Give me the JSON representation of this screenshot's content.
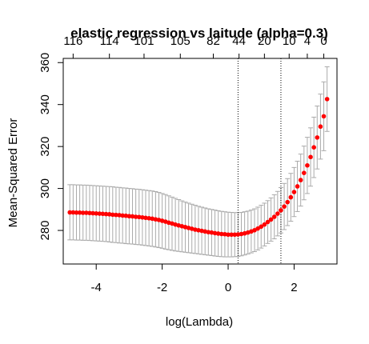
{
  "chart_data": {
    "type": "scatter",
    "title": "elastic regression vs laitude (alpha=0.3)",
    "xlabel": "log(Lambda)",
    "ylabel": "Mean-Squared Error",
    "xlim": [
      -5.0,
      3.3
    ],
    "ylim": [
      264,
      362
    ],
    "x_ticks": [
      -4,
      -2,
      0,
      2
    ],
    "x_tick_labels": [
      "-4",
      "-2",
      "0",
      "2"
    ],
    "y_ticks": [
      280,
      300,
      320,
      340,
      360
    ],
    "y_tick_labels": [
      "280",
      "300",
      "320",
      "340",
      "360"
    ],
    "top_axis_positions": [
      -4.7,
      -3.6,
      -2.55,
      -1.45,
      -0.45,
      0.33,
      1.1,
      1.85,
      2.4,
      2.9
    ],
    "top_axis_labels": [
      "116",
      "114",
      "101",
      "105",
      "82",
      "44",
      "20",
      "10",
      "4",
      "0"
    ],
    "vlines": [
      0.3,
      1.6
    ],
    "point_color": "#ff0000",
    "errorbar_color": "#aaaaaa",
    "x": [
      -4.8,
      -4.7,
      -4.6,
      -4.5,
      -4.4,
      -4.3,
      -4.2,
      -4.1,
      -4.0,
      -3.9,
      -3.8,
      -3.7,
      -3.6,
      -3.5,
      -3.4,
      -3.3,
      -3.2,
      -3.1,
      -3.0,
      -2.9,
      -2.8,
      -2.7,
      -2.6,
      -2.5,
      -2.4,
      -2.3,
      -2.2,
      -2.1,
      -2.0,
      -1.9,
      -1.8,
      -1.7,
      -1.6,
      -1.5,
      -1.4,
      -1.3,
      -1.2,
      -1.1,
      -1.0,
      -0.9,
      -0.8,
      -0.7,
      -0.6,
      -0.5,
      -0.4,
      -0.3,
      -0.2,
      -0.1,
      0.0,
      0.1,
      0.2,
      0.3,
      0.4,
      0.5,
      0.6,
      0.7,
      0.8,
      0.9,
      1.0,
      1.1,
      1.2,
      1.3,
      1.4,
      1.5,
      1.6,
      1.7,
      1.8,
      1.9,
      2.0,
      2.1,
      2.2,
      2.3,
      2.4,
      2.5,
      2.6,
      2.7,
      2.8,
      2.9,
      3.0
    ],
    "mse": [
      288.6,
      288.6,
      288.5,
      288.5,
      288.4,
      288.4,
      288.3,
      288.2,
      288.1,
      288.0,
      287.9,
      287.8,
      287.7,
      287.5,
      287.4,
      287.3,
      287.1,
      287.0,
      286.8,
      286.7,
      286.5,
      286.4,
      286.2,
      286.0,
      285.8,
      285.6,
      285.3,
      285.0,
      284.6,
      284.2,
      283.7,
      283.3,
      282.8,
      282.4,
      282.0,
      281.6,
      281.2,
      280.8,
      280.4,
      280.1,
      279.8,
      279.5,
      279.2,
      279.0,
      278.7,
      278.5,
      278.3,
      278.2,
      278.0,
      278.0,
      278.0,
      278.1,
      278.3,
      278.6,
      279.0,
      279.5,
      280.1,
      280.9,
      281.8,
      282.8,
      284.0,
      285.2,
      286.5,
      288.0,
      289.6,
      291.4,
      293.5,
      295.8,
      298.3,
      301.0,
      304.0,
      307.4,
      311.0,
      315.0,
      319.6,
      324.3,
      329.5,
      334.4,
      342.6
    ],
    "upper": [
      301.8,
      301.8,
      301.7,
      301.7,
      301.6,
      301.6,
      301.5,
      301.4,
      301.3,
      301.2,
      301.1,
      301.0,
      300.9,
      300.8,
      300.6,
      300.5,
      300.3,
      300.2,
      300.0,
      299.9,
      299.7,
      299.6,
      299.4,
      299.2,
      299.0,
      298.8,
      298.5,
      298.1,
      297.6,
      297.1,
      296.5,
      295.9,
      295.3,
      294.7,
      294.1,
      293.5,
      293.0,
      292.5,
      292.0,
      291.5,
      291.1,
      290.7,
      290.3,
      290.0,
      289.7,
      289.4,
      289.1,
      288.9,
      288.7,
      288.6,
      288.5,
      288.5,
      288.6,
      288.9,
      289.2,
      289.7,
      290.3,
      291.1,
      292.0,
      293.0,
      294.2,
      295.5,
      297.0,
      298.6,
      300.4,
      302.4,
      304.7,
      307.2,
      310.0,
      313.0,
      316.4,
      320.2,
      324.4,
      328.9,
      334.0,
      339.3,
      345.0,
      350.8,
      358.0
    ],
    "lower": [
      275.5,
      275.5,
      275.4,
      275.4,
      275.3,
      275.3,
      275.2,
      275.1,
      275.0,
      274.9,
      274.8,
      274.7,
      274.5,
      274.3,
      274.2,
      274.0,
      273.9,
      273.7,
      273.6,
      273.5,
      273.3,
      273.2,
      273.0,
      272.8,
      272.6,
      272.4,
      272.1,
      271.8,
      271.5,
      271.1,
      270.8,
      270.5,
      270.2,
      270.0,
      269.8,
      269.6,
      269.4,
      269.2,
      269.0,
      268.8,
      268.6,
      268.4,
      268.2,
      268.0,
      267.8,
      267.6,
      267.5,
      267.4,
      267.4,
      267.4,
      267.5,
      267.6,
      267.9,
      268.3,
      268.8,
      269.3,
      269.9,
      270.7,
      271.6,
      272.6,
      273.8,
      274.9,
      276.0,
      277.4,
      278.8,
      280.4,
      282.3,
      284.4,
      286.6,
      289.0,
      291.6,
      294.6,
      297.6,
      301.1,
      305.2,
      309.3,
      314.0,
      318.0,
      327.2
    ]
  }
}
